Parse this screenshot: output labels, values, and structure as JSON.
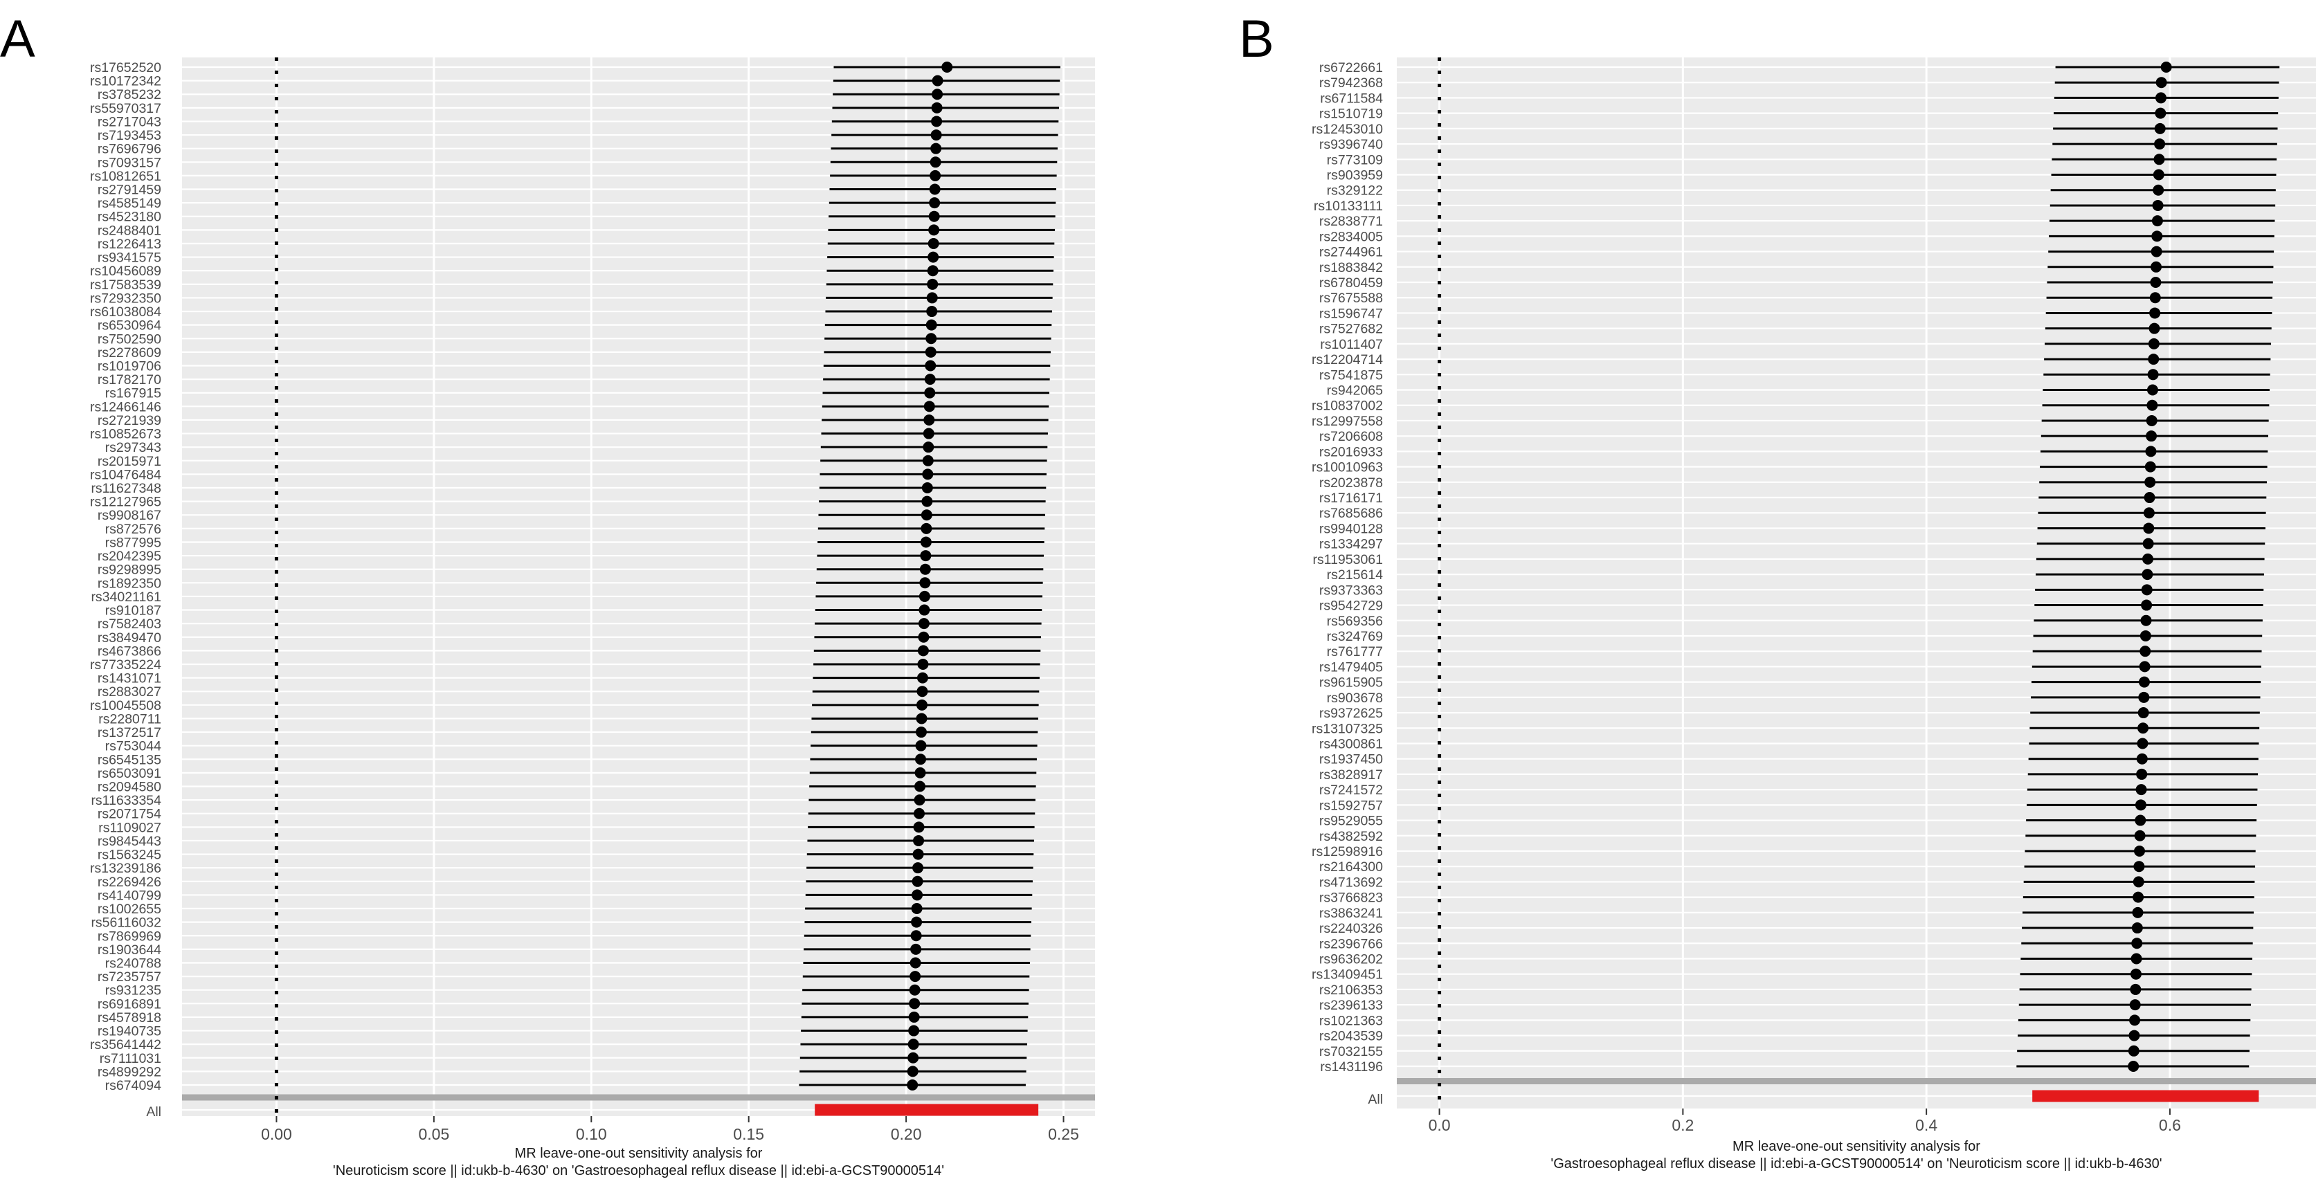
{
  "panels": [
    "A",
    "B"
  ],
  "colors": {
    "panel_bg": "#ebebeb",
    "grid_major": "#ffffff",
    "point_line": "#000000",
    "all_line": "#e41a1c",
    "ref_line": "#000000",
    "sep_line": "#aaaaaa"
  },
  "chart_data": [
    {
      "type": "forest",
      "panel_label": "A",
      "title": "",
      "xlabel": "MR leave-one-out sensitivity analysis for\n'Neuroticism score || id:ukb-b-4630' on 'Gastroesophageal reflux disease || id:ebi-a-GCST90000514'",
      "ylabel": "",
      "xlim": [
        -0.03,
        0.26
      ],
      "xticks": [
        0.0,
        0.05,
        0.1,
        0.15,
        0.2,
        0.25
      ],
      "xtick_labels": [
        "0.00",
        "0.05",
        "0.10",
        "0.15",
        "0.20",
        "0.25"
      ],
      "reference_x": 0,
      "grid": true,
      "snps": [
        "rs17652520",
        "rs10172342",
        "rs3785232",
        "rs55970317",
        "rs2717043",
        "rs7193453",
        "rs7696796",
        "rs7093157",
        "rs10812651",
        "rs2791459",
        "rs4585149",
        "rs4523180",
        "rs2488401",
        "rs1226413",
        "rs9341575",
        "rs10456089",
        "rs17583539",
        "rs72932350",
        "rs61038084",
        "rs6530964",
        "rs7502590",
        "rs2278609",
        "rs1019706",
        "rs1782170",
        "rs167915",
        "rs12466146",
        "rs2721939",
        "rs10852673",
        "rs297343",
        "rs2015971",
        "rs10476484",
        "rs11627348",
        "rs12127965",
        "rs9908167",
        "rs872576",
        "rs877995",
        "rs2042395",
        "rs9298995",
        "rs1892350",
        "rs34021161",
        "rs910187",
        "rs7582403",
        "rs3849470",
        "rs4673866",
        "rs77335224",
        "rs1431071",
        "rs2883027",
        "rs10045508",
        "rs2280711",
        "rs1372517",
        "rs753044",
        "rs6545135",
        "rs6503091",
        "rs2094580",
        "rs11633354",
        "rs2071754",
        "rs1109027",
        "rs9845443",
        "rs1563245",
        "rs13239186",
        "rs2269426",
        "rs4140799",
        "rs1002655",
        "rs56116032",
        "rs7869969",
        "rs1903644",
        "rs240788",
        "rs7235757",
        "rs931235",
        "rs6916891",
        "rs4578918",
        "rs1940735",
        "rs35641442",
        "rs7111031",
        "rs4899292",
        "rs674094"
      ],
      "estimate_start": 0.213,
      "estimate_second": 0.21,
      "estimate_end": 0.202,
      "ci_lower_start": 0.177,
      "ci_lower_end": 0.166,
      "ci_upper_start": 0.249,
      "ci_upper_end": 0.238,
      "overall": {
        "label": "All",
        "estimate": 0.206,
        "lower": 0.171,
        "upper": 0.242
      }
    },
    {
      "type": "forest",
      "panel_label": "B",
      "title": "",
      "xlabel": "MR leave-one-out sensitivity analysis for\n'Gastroesophageal reflux disease || id:ebi-a-GCST90000514' on 'Neuroticism score || id:ukb-b-4630'",
      "ylabel": "",
      "xlim": [
        -0.035,
        0.72
      ],
      "xticks": [
        0.0,
        0.2,
        0.4,
        0.6
      ],
      "xtick_labels": [
        "0.0",
        "0.2",
        "0.4",
        "0.6"
      ],
      "reference_x": 0,
      "grid": true,
      "snps": [
        "rs6722661",
        "rs7942368",
        "rs6711584",
        "rs1510719",
        "rs12453010",
        "rs9396740",
        "rs773109",
        "rs903959",
        "rs329122",
        "rs10133111",
        "rs2838771",
        "rs2834005",
        "rs2744961",
        "rs1883842",
        "rs6780459",
        "rs7675588",
        "rs1596747",
        "rs7527682",
        "rs1011407",
        "rs12204714",
        "rs7541875",
        "rs942065",
        "rs10837002",
        "rs12997558",
        "rs7206608",
        "rs2016933",
        "rs10010963",
        "rs2023878",
        "rs1716171",
        "rs7685686",
        "rs9940128",
        "rs1334297",
        "rs11953061",
        "rs215614",
        "rs9373363",
        "rs9542729",
        "rs569356",
        "rs324769",
        "rs761777",
        "rs1479405",
        "rs9615905",
        "rs903678",
        "rs9372625",
        "rs13107325",
        "rs4300861",
        "rs1937450",
        "rs3828917",
        "rs7241572",
        "rs1592757",
        "rs9529055",
        "rs4382592",
        "rs12598916",
        "rs2164300",
        "rs4713692",
        "rs3766823",
        "rs3863241",
        "rs2240326",
        "rs2396766",
        "rs9636202",
        "rs13409451",
        "rs2106353",
        "rs2396133",
        "rs1021363",
        "rs2043539",
        "rs7032155",
        "rs1431196"
      ],
      "estimate_start": 0.597,
      "estimate_second": 0.593,
      "estimate_end": 0.57,
      "ci_lower_start": 0.506,
      "ci_lower_end": 0.474,
      "ci_upper_start": 0.69,
      "ci_upper_end": 0.665,
      "overall": {
        "label": "All",
        "estimate": 0.58,
        "lower": 0.487,
        "upper": 0.673
      }
    }
  ]
}
